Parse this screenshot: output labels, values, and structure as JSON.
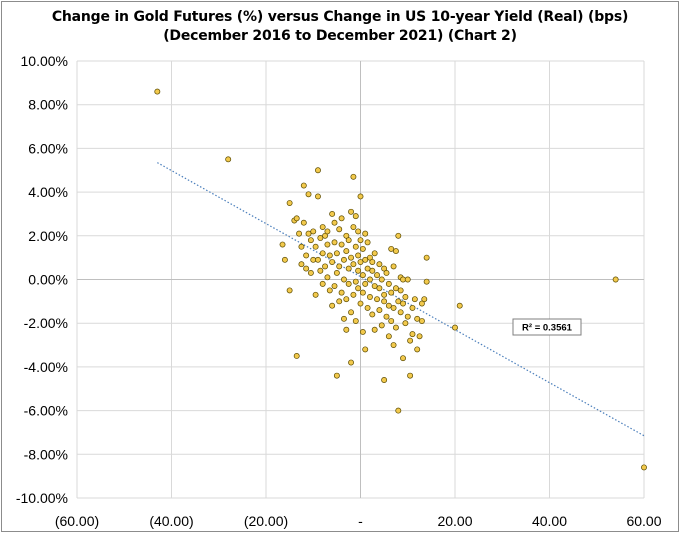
{
  "chart_data": {
    "type": "scatter",
    "title": "Change in Gold Futures (%) versus Change in US 10-year Yield (Real) (bps)",
    "subtitle": "(December 2016 to December 2021) (Chart 2)",
    "xlabel": "",
    "ylabel": "",
    "xlim": [
      -60,
      60
    ],
    "ylim": [
      -10,
      10
    ],
    "x_ticks": [
      -60,
      -40,
      -20,
      0,
      20,
      40,
      60
    ],
    "x_tick_labels": [
      "(60.00)",
      "(40.00)",
      "(20.00)",
      "-",
      "20.00",
      "40.00",
      "60.00"
    ],
    "y_ticks": [
      10,
      8,
      6,
      4,
      2,
      0,
      -2,
      -4,
      -6,
      -8,
      -10
    ],
    "y_tick_labels": [
      "10.00%",
      "8.00%",
      "6.00%",
      "4.00%",
      "2.00%",
      "0.00%",
      "-2.00%",
      "-4.00%",
      "-6.00%",
      "-8.00%",
      "-10.00%"
    ],
    "grid": true,
    "legend": "none",
    "marker_color": "#f2c94c",
    "marker_edge": "#5a4a00",
    "trendline": {
      "style": "dotted",
      "color": "#4a7ebb",
      "from": [
        -43,
        5.35
      ],
      "to": [
        60,
        -7.15
      ],
      "r2_label": "R² = 0.3561"
    },
    "points": [
      [
        -43,
        8.6
      ],
      [
        -28,
        5.5
      ],
      [
        60,
        -8.6
      ],
      [
        54,
        0
      ],
      [
        21,
        -1.2
      ],
      [
        20,
        -2.2
      ],
      [
        -16.5,
        1.6
      ],
      [
        -16,
        0.9
      ],
      [
        -15,
        -0.5
      ],
      [
        -15,
        3.5
      ],
      [
        -14,
        2.7
      ],
      [
        -13.5,
        2.8
      ],
      [
        -13.5,
        -3.5
      ],
      [
        -13,
        2.1
      ],
      [
        -12.5,
        1.5
      ],
      [
        -12.5,
        0.7
      ],
      [
        -12,
        4.3
      ],
      [
        -12,
        2.6
      ],
      [
        -11.5,
        0.5
      ],
      [
        -11.5,
        1.1
      ],
      [
        -11,
        3.9
      ],
      [
        -11,
        2.1
      ],
      [
        -10.5,
        1.8
      ],
      [
        -10.5,
        0.3
      ],
      [
        -10,
        0.9
      ],
      [
        -10,
        2.2
      ],
      [
        -9.5,
        1.5
      ],
      [
        -9.5,
        -0.7
      ],
      [
        -9,
        5.0
      ],
      [
        -9,
        3.8
      ],
      [
        -9,
        0.9
      ],
      [
        -8.5,
        1.9
      ],
      [
        -8.5,
        0.4
      ],
      [
        -8,
        2.4
      ],
      [
        -8,
        1.2
      ],
      [
        -8,
        -0.2
      ],
      [
        -7.5,
        2.0
      ],
      [
        -7.5,
        0.6
      ],
      [
        -7,
        1.6
      ],
      [
        -7,
        2.2
      ],
      [
        -7,
        0.1
      ],
      [
        -6.5,
        1.1
      ],
      [
        -6.5,
        -0.5
      ],
      [
        -6,
        3.0
      ],
      [
        -6,
        0.8
      ],
      [
        -6,
        -1.2
      ],
      [
        -5.5,
        2.6
      ],
      [
        -5.5,
        1.7
      ],
      [
        -5.5,
        -0.3
      ],
      [
        -5,
        0.3
      ],
      [
        -5,
        -4.4
      ],
      [
        -5,
        1.2
      ],
      [
        -4.5,
        -1.0
      ],
      [
        -4.5,
        2.3
      ],
      [
        -4.5,
        0.6
      ],
      [
        -4,
        1.6
      ],
      [
        -4,
        -0.6
      ],
      [
        -4,
        2.8
      ],
      [
        -3.5,
        0.9
      ],
      [
        -3.5,
        -1.8
      ],
      [
        -3.5,
        0.0
      ],
      [
        -3,
        1.3
      ],
      [
        -3,
        -0.9
      ],
      [
        -3,
        2.0
      ],
      [
        -3,
        -2.3
      ],
      [
        -2.5,
        0.5
      ],
      [
        -2.5,
        1.8
      ],
      [
        -2.5,
        -0.2
      ],
      [
        -2,
        3.1
      ],
      [
        -2,
        1.0
      ],
      [
        -2,
        -1.5
      ],
      [
        -2,
        -3.8
      ],
      [
        -1.5,
        0.7
      ],
      [
        -1.5,
        2.4
      ],
      [
        -1.5,
        -0.7
      ],
      [
        -1.5,
        4.7
      ],
      [
        -1,
        1.5
      ],
      [
        -1,
        -0.1
      ],
      [
        -1,
        2.9
      ],
      [
        -1,
        -1.9
      ],
      [
        -0.5,
        0.4
      ],
      [
        -0.5,
        1.1
      ],
      [
        -0.5,
        -0.4
      ],
      [
        -0.5,
        2.2
      ],
      [
        0,
        0.8
      ],
      [
        0,
        -1.1
      ],
      [
        0,
        3.8
      ],
      [
        0,
        1.8
      ],
      [
        0.5,
        0.2
      ],
      [
        0.5,
        -0.6
      ],
      [
        0.5,
        1.4
      ],
      [
        0.5,
        -2.4
      ],
      [
        1,
        0.9
      ],
      [
        1,
        -0.2
      ],
      [
        1,
        2.1
      ],
      [
        1,
        -3.2
      ],
      [
        1.5,
        0.5
      ],
      [
        1.5,
        -1.3
      ],
      [
        1.5,
        1.7
      ],
      [
        2,
        0.0
      ],
      [
        2,
        -0.8
      ],
      [
        2,
        1.0
      ],
      [
        2.5,
        0.4
      ],
      [
        2.5,
        -1.6
      ],
      [
        2.5,
        0.8
      ],
      [
        3,
        -0.3
      ],
      [
        3,
        -2.3
      ],
      [
        3,
        1.2
      ],
      [
        3.5,
        0.2
      ],
      [
        3.5,
        -0.9
      ],
      [
        4,
        -0.4
      ],
      [
        4,
        -1.4
      ],
      [
        4,
        0.7
      ],
      [
        4.5,
        0.0
      ],
      [
        4.5,
        -2.1
      ],
      [
        5,
        -0.7
      ],
      [
        5,
        -1.0
      ],
      [
        5,
        -4.6
      ],
      [
        5,
        0.5
      ],
      [
        5.5,
        -1.7
      ],
      [
        5.5,
        0.3
      ],
      [
        6,
        -1.2
      ],
      [
        6,
        -0.2
      ],
      [
        6,
        -2.6
      ],
      [
        6.5,
        1.4
      ],
      [
        6.5,
        -0.6
      ],
      [
        6.5,
        -1.9
      ],
      [
        7,
        0.6
      ],
      [
        7,
        -1.3
      ],
      [
        7,
        -3.0
      ],
      [
        7.5,
        1.3
      ],
      [
        7.5,
        -0.4
      ],
      [
        7.5,
        -2.2
      ],
      [
        8,
        2.0
      ],
      [
        8,
        -1.0
      ],
      [
        8,
        -6.0
      ],
      [
        8.5,
        0.1
      ],
      [
        8.5,
        -1.5
      ],
      [
        8.5,
        -0.5
      ],
      [
        9,
        -3.6
      ],
      [
        9,
        -1.1
      ],
      [
        9,
        0.0
      ],
      [
        9.5,
        -2.0
      ],
      [
        9.5,
        -0.8
      ],
      [
        10,
        0.0
      ],
      [
        10,
        -1.7
      ],
      [
        10.5,
        -4.4
      ],
      [
        10.5,
        -2.8
      ],
      [
        11,
        -1.3
      ],
      [
        11,
        -2.5
      ],
      [
        11.5,
        -0.9
      ],
      [
        12,
        -3.2
      ],
      [
        12,
        -1.8
      ],
      [
        12.5,
        -2.6
      ],
      [
        13,
        -1.1
      ],
      [
        13,
        -1.9
      ],
      [
        13.5,
        -0.9
      ],
      [
        14,
        1.0
      ],
      [
        14,
        -0.1
      ]
    ]
  }
}
